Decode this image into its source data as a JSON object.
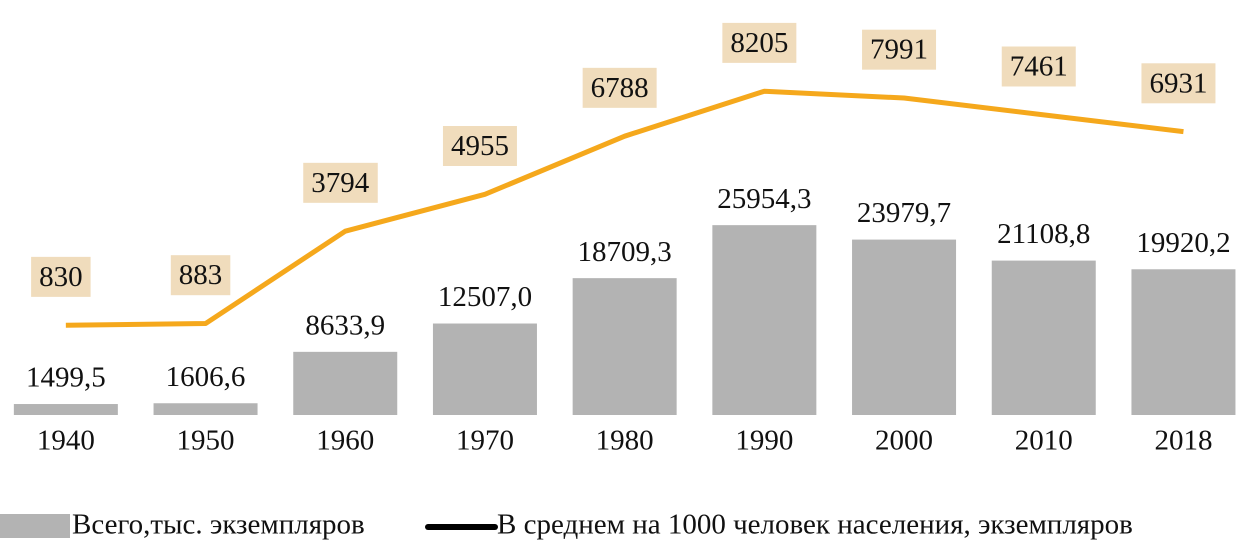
{
  "chart_data": {
    "type": "bar",
    "categories": [
      "1940",
      "1950",
      "1960",
      "1970",
      "1980",
      "1990",
      "2000",
      "2010",
      "2018"
    ],
    "series": [
      {
        "name": "Всего,тыс. экземпляров",
        "type": "bar",
        "color": "#b3b3b3",
        "values": [
          1499.5,
          1606.6,
          8633.9,
          12507.0,
          18709.3,
          25954.3,
          23979.7,
          21108.8,
          19920.2
        ],
        "value_labels": [
          "1499,5",
          "1606,6",
          "8633,9",
          "12507,0",
          "18709,3",
          "25954,3",
          "23979,7",
          "21108,8",
          "19920,2"
        ]
      },
      {
        "name": "В среднем на 1000 человек населения, экземпляров",
        "type": "line",
        "axis": "y2",
        "color": "#f5a81c",
        "legend_color": "#000000",
        "label_box_color": "#f0dcbc",
        "values": [
          830,
          883,
          3794,
          4955,
          6788,
          8205,
          7991,
          7461,
          6931
        ]
      }
    ],
    "ylim": [
      0,
      54000
    ],
    "y2lim": [
      -2000,
      10450
    ]
  }
}
